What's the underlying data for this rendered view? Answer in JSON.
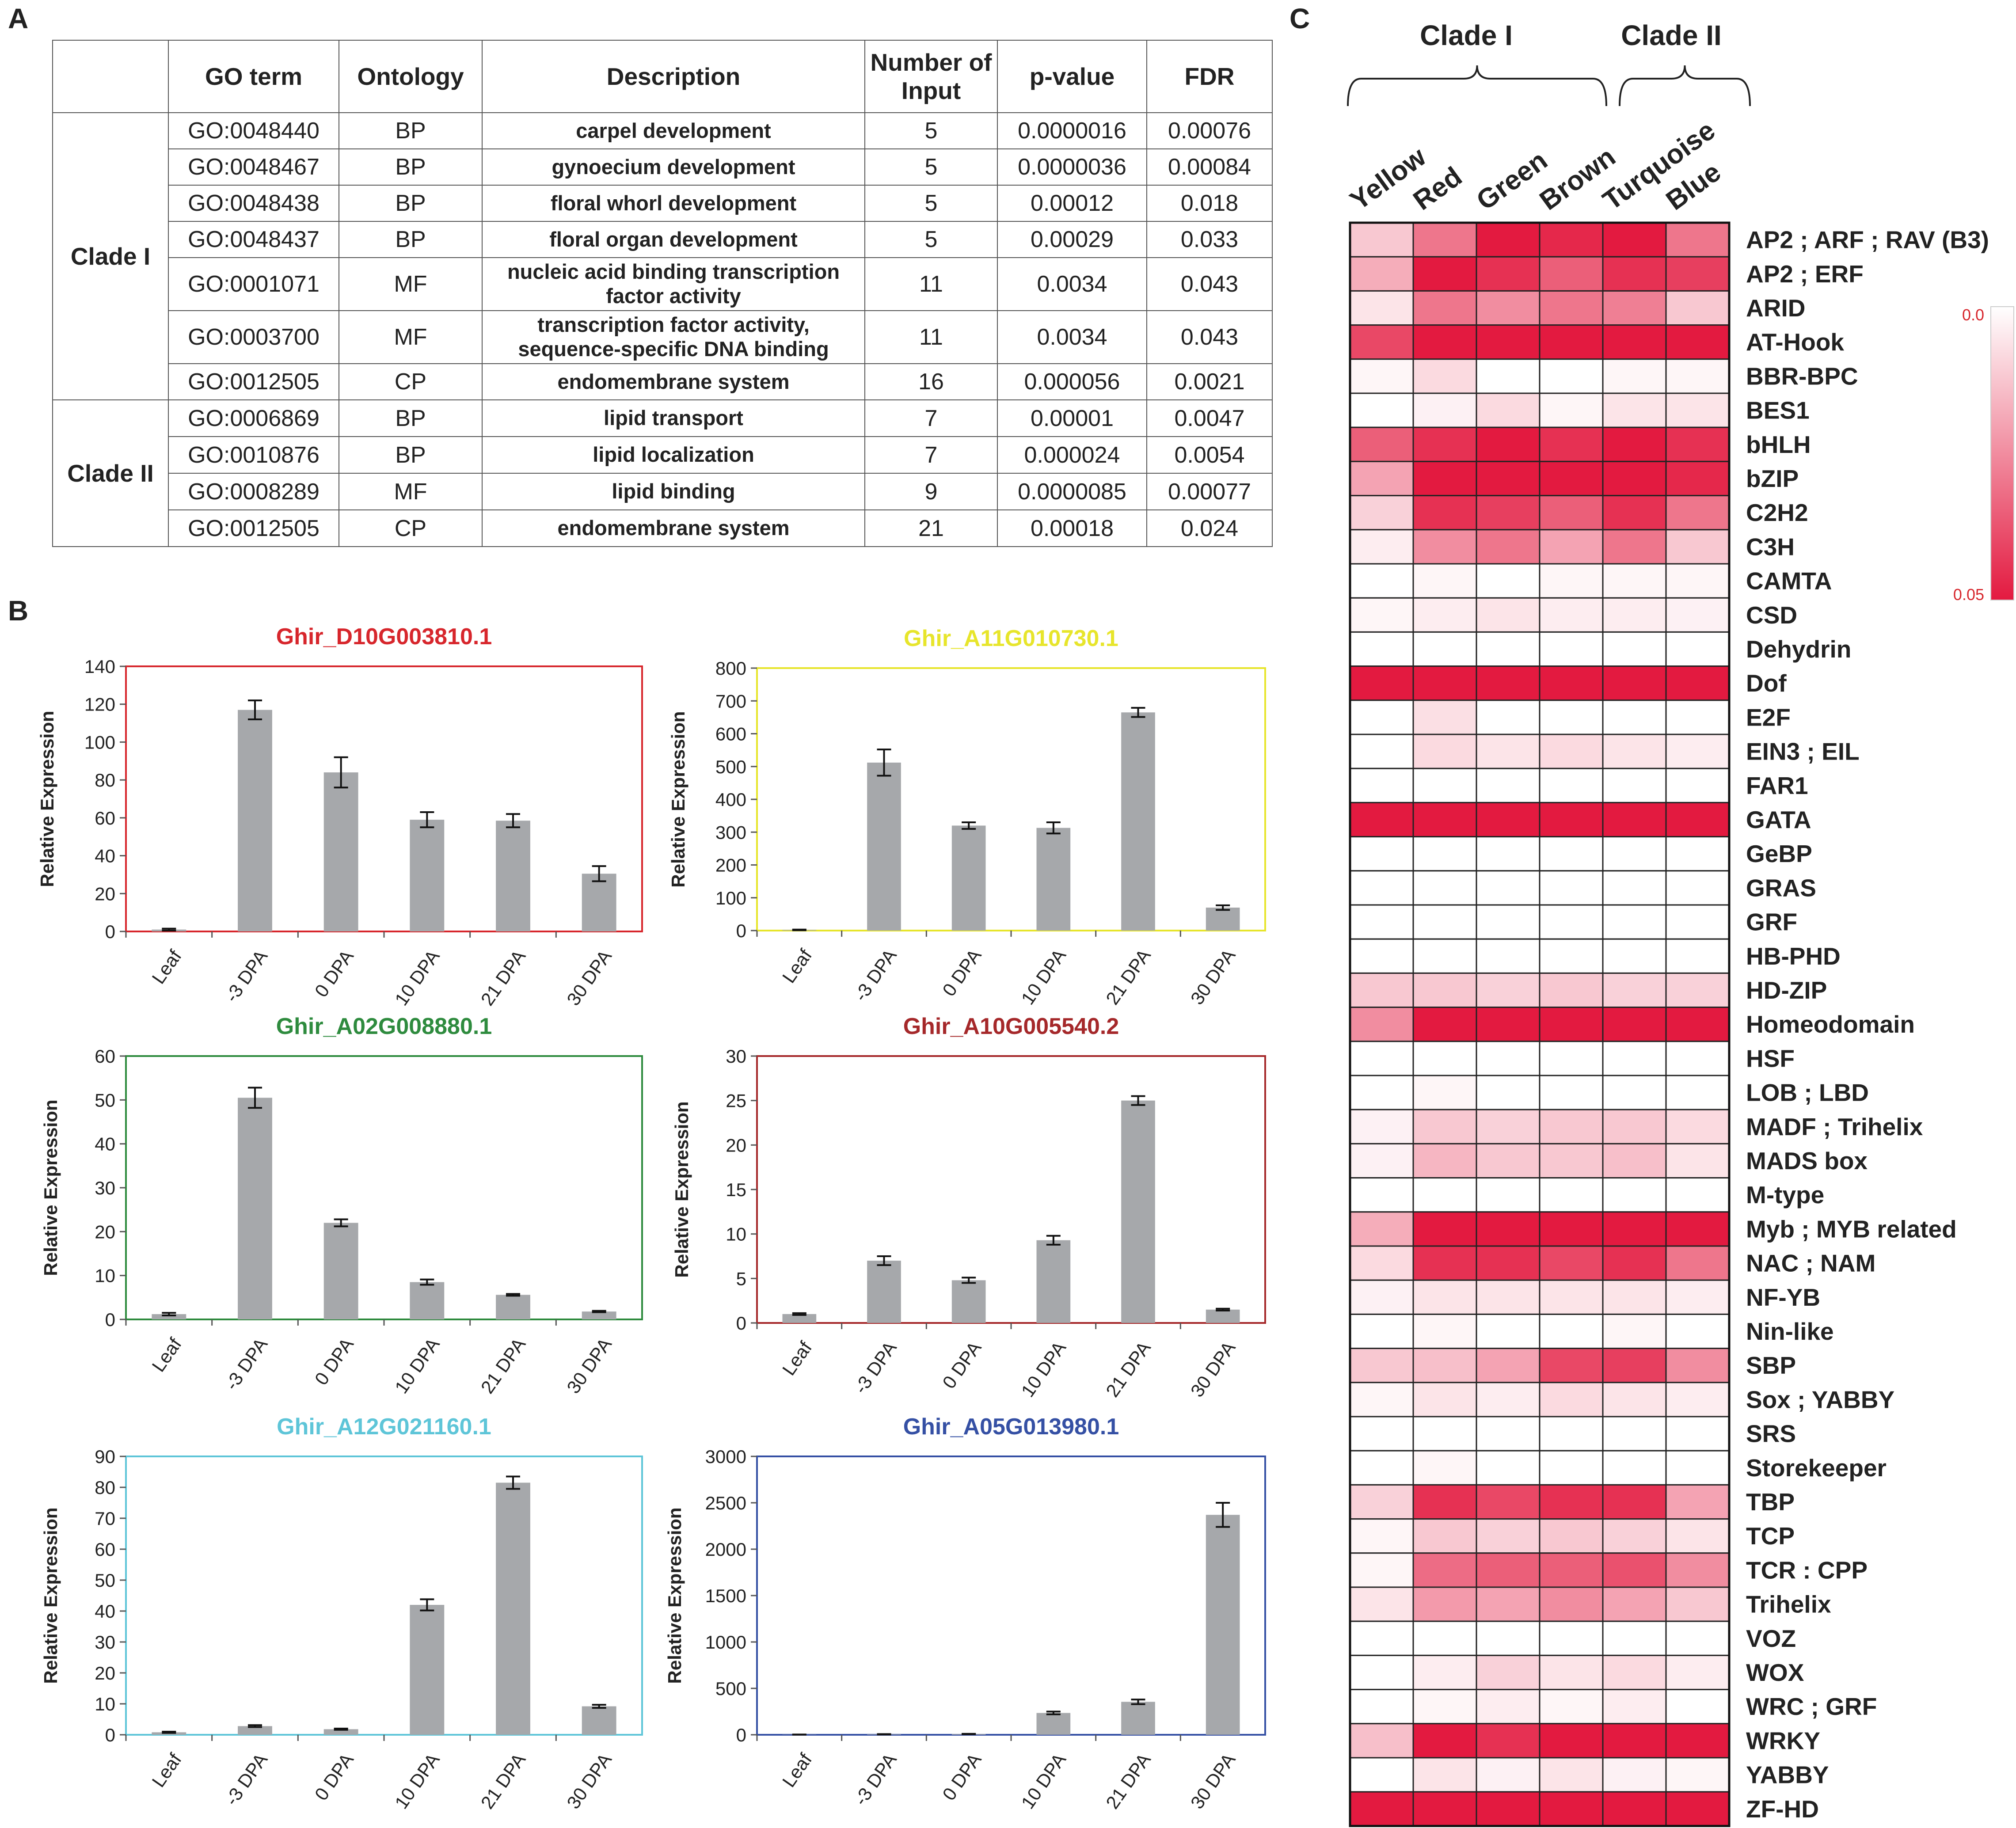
{
  "panels": {
    "a": "A",
    "b": "B",
    "c": "C"
  },
  "go_table": {
    "headers": [
      "",
      "GO term",
      "Ontology",
      "Description",
      "Number of Input",
      "p-value",
      "FDR"
    ],
    "groups": [
      {
        "clade": "Clade I",
        "rows": [
          {
            "go": "GO:0048440",
            "ont": "BP",
            "desc": "carpel development",
            "n": "5",
            "p": "0.0000016",
            "fdr": "0.00076"
          },
          {
            "go": "GO:0048467",
            "ont": "BP",
            "desc": "gynoecium development",
            "n": "5",
            "p": "0.0000036",
            "fdr": "0.00084"
          },
          {
            "go": "GO:0048438",
            "ont": "BP",
            "desc": "floral whorl development",
            "n": "5",
            "p": "0.00012",
            "fdr": "0.018"
          },
          {
            "go": "GO:0048437",
            "ont": "BP",
            "desc": "floral organ development",
            "n": "5",
            "p": "0.00029",
            "fdr": "0.033"
          },
          {
            "go": "GO:0001071",
            "ont": "MF",
            "desc": "nucleic acid binding transcription factor activity",
            "n": "11",
            "p": "0.0034",
            "fdr": "0.043"
          },
          {
            "go": "GO:0003700",
            "ont": "MF",
            "desc": "transcription factor activity, sequence-specific DNA binding",
            "n": "11",
            "p": "0.0034",
            "fdr": "0.043"
          },
          {
            "go": "GO:0012505",
            "ont": "CP",
            "desc": "endomembrane system",
            "n": "16",
            "p": "0.000056",
            "fdr": "0.0021"
          }
        ]
      },
      {
        "clade": "Clade II",
        "rows": [
          {
            "go": "GO:0006869",
            "ont": "BP",
            "desc": "lipid transport",
            "n": "7",
            "p": "0.00001",
            "fdr": "0.0047"
          },
          {
            "go": "GO:0010876",
            "ont": "BP",
            "desc": "lipid localization",
            "n": "7",
            "p": "0.000024",
            "fdr": "0.0054"
          },
          {
            "go": "GO:0008289",
            "ont": "MF",
            "desc": "lipid binding",
            "n": "9",
            "p": "0.0000085",
            "fdr": "0.00077"
          },
          {
            "go": "GO:0012505",
            "ont": "CP",
            "desc": "endomembrane system",
            "n": "21",
            "p": "0.00018",
            "fdr": "0.024"
          }
        ]
      }
    ]
  },
  "chart_data": [
    {
      "type": "bar",
      "title": "Ghir_D10G003810.1",
      "color": "#d7262c",
      "categories": [
        "Leaf",
        "-3 DPA",
        "0 DPA",
        "10 DPA",
        "21 DPA",
        "30 DPA"
      ],
      "values": [
        1,
        117,
        84,
        59,
        58.5,
        30.5
      ],
      "errors": [
        0.5,
        5,
        8,
        4,
        3.5,
        4
      ],
      "ylabel": "Relative Expression",
      "ylim": [
        0,
        140
      ],
      "yticks": [
        0,
        20,
        40,
        60,
        80,
        100,
        120,
        140
      ]
    },
    {
      "type": "bar",
      "title": "Ghir_A11G010730.1",
      "color": "#e7e52b",
      "categories": [
        "Leaf",
        "-3 DPA",
        "0 DPA",
        "10 DPA",
        "21 DPA",
        "30 DPA"
      ],
      "values": [
        2,
        512,
        320,
        313,
        665,
        70
      ],
      "errors": [
        1,
        40,
        10,
        17,
        14,
        7
      ],
      "ylabel": "Relative Expression",
      "ylim": [
        0,
        800
      ],
      "yticks": [
        0,
        100,
        200,
        300,
        400,
        500,
        600,
        700,
        800
      ]
    },
    {
      "type": "bar",
      "title": "Ghir_A02G008880.1",
      "color": "#2e8b3e",
      "categories": [
        "Leaf",
        "-3 DPA",
        "0 DPA",
        "10 DPA",
        "21 DPA",
        "30 DPA"
      ],
      "values": [
        1.2,
        50.5,
        22,
        8.5,
        5.6,
        1.8
      ],
      "errors": [
        0.3,
        2.3,
        0.8,
        0.6,
        0.2,
        0.15
      ],
      "ylabel": "Relative Expression",
      "ylim": [
        0,
        60
      ],
      "yticks": [
        0,
        10,
        20,
        30,
        40,
        50,
        60
      ]
    },
    {
      "type": "bar",
      "title": "Ghir_A10G005540.2",
      "color": "#a5282a",
      "categories": [
        "Leaf",
        "-3 DPA",
        "0 DPA",
        "10 DPA",
        "21 DPA",
        "30 DPA"
      ],
      "values": [
        1,
        7,
        4.8,
        9.3,
        25,
        1.5
      ],
      "errors": [
        0.1,
        0.5,
        0.3,
        0.5,
        0.5,
        0.1
      ],
      "ylabel": "Relative Expression",
      "ylim": [
        0,
        30
      ],
      "yticks": [
        0,
        5,
        10,
        15,
        20,
        25,
        30
      ]
    },
    {
      "type": "bar",
      "title": "Ghir_A12G021160.1",
      "color": "#5ec5d8",
      "categories": [
        "Leaf",
        "-3 DPA",
        "0 DPA",
        "10 DPA",
        "21 DPA",
        "30 DPA"
      ],
      "values": [
        0.8,
        2.8,
        1.8,
        42,
        81.5,
        9.2
      ],
      "errors": [
        0.2,
        0.3,
        0.2,
        1.8,
        2,
        0.5
      ],
      "ylabel": "Relative Expression",
      "ylim": [
        0,
        90
      ],
      "yticks": [
        0,
        10,
        20,
        30,
        40,
        50,
        60,
        70,
        80,
        90
      ]
    },
    {
      "type": "bar",
      "title": "Ghir_A05G013980.1",
      "color": "#3550a4",
      "categories": [
        "Leaf",
        "-3 DPA",
        "0 DPA",
        "10 DPA",
        "21 DPA",
        "30 DPA"
      ],
      "values": [
        2,
        5,
        8,
        235,
        355,
        2370
      ],
      "errors": [
        1,
        2,
        2,
        15,
        25,
        130
      ],
      "ylabel": "Relative Expression",
      "ylim": [
        0,
        3000
      ],
      "yticks": [
        0,
        500,
        1000,
        1500,
        2000,
        2500,
        3000
      ]
    },
    {
      "type": "heatmap",
      "title": "",
      "clades": [
        "Clade I",
        "Clade II"
      ],
      "columns": [
        "Yellow",
        "Red",
        "Green",
        "Brown",
        "Turquoise",
        "Blue"
      ],
      "rows": [
        "AP2 ; ARF ; RAV (B3)",
        "AP2 ; ERF",
        "ARID",
        "AT-Hook",
        "BBR-BPC",
        "BES1",
        "bHLH",
        "bZIP",
        "C2H2",
        "C3H",
        "CAMTA",
        "CSD",
        "Dehydrin",
        "Dof",
        "E2F",
        "EIN3 ; EIL",
        "FAR1",
        "GATA",
        "GeBP",
        "GRAS",
        "GRF",
        "HB-PHD",
        "HD-ZIP",
        "Homeodomain",
        "HSF",
        "LOB ; LBD",
        "MADF ; Trihelix",
        "MADS box",
        "M-type",
        "Myb ; MYB related",
        "NAC ; NAM",
        "NF-YB",
        "Nin-like",
        "SBP",
        "Sox ; YABBY",
        "SRS",
        "Storekeeper",
        "TBP",
        "TCP",
        "TCR : CPP",
        "Trihelix",
        "VOZ",
        "WOX",
        "WRC ; GRF",
        "WRKY",
        "YABBY",
        "ZF-HD"
      ],
      "values": [
        [
          0.012,
          0.03,
          0.05,
          0.047,
          0.05,
          0.03
        ],
        [
          0.018,
          0.05,
          0.045,
          0.035,
          0.045,
          0.042
        ],
        [
          0.006,
          0.03,
          0.025,
          0.03,
          0.028,
          0.012
        ],
        [
          0.04,
          0.05,
          0.05,
          0.05,
          0.05,
          0.05
        ],
        [
          0.002,
          0.008,
          0.0,
          0.0,
          0.002,
          0.002
        ],
        [
          0.0,
          0.003,
          0.008,
          0.002,
          0.006,
          0.006
        ],
        [
          0.035,
          0.045,
          0.05,
          0.045,
          0.05,
          0.045
        ],
        [
          0.02,
          0.05,
          0.05,
          0.05,
          0.05,
          0.047
        ],
        [
          0.01,
          0.045,
          0.042,
          0.035,
          0.045,
          0.03
        ],
        [
          0.004,
          0.025,
          0.03,
          0.02,
          0.03,
          0.012
        ],
        [
          0.0,
          0.002,
          0.0,
          0.002,
          0.002,
          0.002
        ],
        [
          0.002,
          0.004,
          0.006,
          0.004,
          0.004,
          0.003
        ],
        [
          0.0,
          0.0,
          0.0,
          0.0,
          0.0,
          0.0
        ],
        [
          0.05,
          0.05,
          0.05,
          0.05,
          0.05,
          0.05
        ],
        [
          0.0,
          0.007,
          0.0,
          0.0,
          0.0,
          0.0
        ],
        [
          0.0,
          0.008,
          0.006,
          0.008,
          0.006,
          0.004
        ],
        [
          0.0,
          0.0,
          0.0,
          0.0,
          0.0,
          0.0
        ],
        [
          0.05,
          0.05,
          0.05,
          0.05,
          0.05,
          0.05
        ],
        [
          0.0,
          0.0,
          0.0,
          0.0,
          0.0,
          0.0
        ],
        [
          0.0,
          0.0,
          0.0,
          0.0,
          0.0,
          0.0
        ],
        [
          0.0,
          0.0,
          0.0,
          0.0,
          0.0,
          0.0
        ],
        [
          0.0,
          0.0,
          0.0,
          0.0,
          0.0,
          0.0
        ],
        [
          0.012,
          0.012,
          0.01,
          0.012,
          0.01,
          0.01
        ],
        [
          0.025,
          0.05,
          0.05,
          0.05,
          0.05,
          0.05
        ],
        [
          0.0,
          0.0,
          0.0,
          0.0,
          0.0,
          0.0
        ],
        [
          0.0,
          0.002,
          0.0,
          0.0,
          0.0,
          0.0
        ],
        [
          0.003,
          0.012,
          0.01,
          0.012,
          0.012,
          0.008
        ],
        [
          0.003,
          0.016,
          0.012,
          0.012,
          0.014,
          0.006
        ],
        [
          0.0,
          0.0,
          0.0,
          0.0,
          0.0,
          0.0
        ],
        [
          0.018,
          0.05,
          0.05,
          0.05,
          0.05,
          0.05
        ],
        [
          0.008,
          0.045,
          0.045,
          0.04,
          0.045,
          0.03
        ],
        [
          0.003,
          0.006,
          0.006,
          0.006,
          0.006,
          0.004
        ],
        [
          0.0,
          0.002,
          0.0,
          0.0,
          0.002,
          0.0
        ],
        [
          0.012,
          0.014,
          0.02,
          0.04,
          0.042,
          0.025
        ],
        [
          0.002,
          0.006,
          0.004,
          0.008,
          0.006,
          0.004
        ],
        [
          0.0,
          0.0,
          0.0,
          0.0,
          0.0,
          0.0
        ],
        [
          0.0,
          0.002,
          0.0,
          0.0,
          0.0,
          0.0
        ],
        [
          0.01,
          0.045,
          0.04,
          0.045,
          0.045,
          0.02
        ],
        [
          0.002,
          0.012,
          0.01,
          0.012,
          0.01,
          0.006
        ],
        [
          0.002,
          0.032,
          0.035,
          0.035,
          0.038,
          0.025
        ],
        [
          0.006,
          0.022,
          0.02,
          0.025,
          0.02,
          0.012
        ],
        [
          0.0,
          0.0,
          0.0,
          0.0,
          0.0,
          0.0
        ],
        [
          0.0,
          0.004,
          0.01,
          0.006,
          0.008,
          0.004
        ],
        [
          0.0,
          0.002,
          0.004,
          0.002,
          0.004,
          0.0
        ],
        [
          0.014,
          0.05,
          0.045,
          0.05,
          0.05,
          0.05
        ],
        [
          0.0,
          0.006,
          0.003,
          0.006,
          0.003,
          0.002
        ],
        [
          0.05,
          0.05,
          0.05,
          0.05,
          0.05,
          0.05
        ]
      ],
      "color_scale": {
        "min_label": "0.0",
        "max_label": "0.05",
        "min": 0,
        "max": 0.05,
        "low_color": "#ffffff",
        "high_color": "#e31a40"
      }
    }
  ]
}
